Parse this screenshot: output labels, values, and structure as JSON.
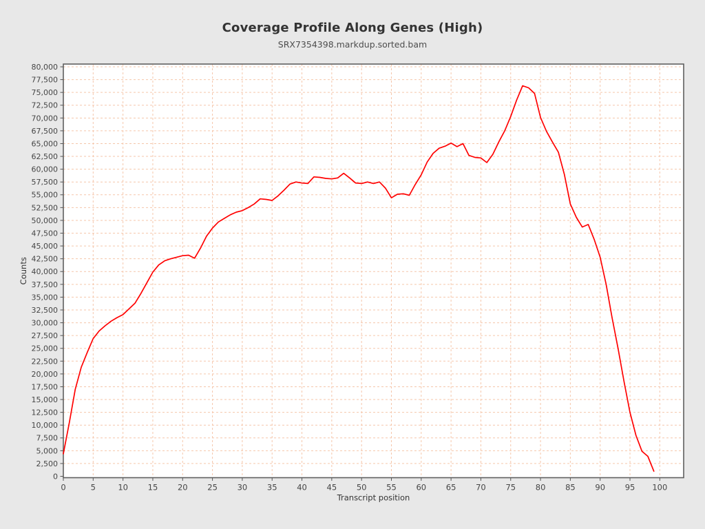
{
  "page": {
    "background": "#e8e8e8"
  },
  "chart_data": {
    "type": "line",
    "title": "Coverage Profile Along Genes (High)",
    "subtitle": "SRX7354398.markdup.sorted.bam",
    "xlabel": "Transcript position",
    "ylabel": "Counts",
    "xlim": [
      0,
      104
    ],
    "ylim": [
      0,
      80000
    ],
    "x_tick_step": 5,
    "x_tick_max": 100,
    "y_tick_step": 2500,
    "grid": true,
    "grid_color": "#f5c6aa",
    "plot_bg": "#ffffff",
    "border_color": "#5f5f5f",
    "tick_label_color": "#454545",
    "axis_title_color": "#333333",
    "legend": "none",
    "x": [
      0,
      1,
      2,
      3,
      4,
      5,
      6,
      7,
      8,
      9,
      10,
      11,
      12,
      13,
      14,
      15,
      16,
      17,
      18,
      19,
      20,
      21,
      22,
      23,
      24,
      25,
      26,
      27,
      28,
      29,
      30,
      31,
      32,
      33,
      34,
      35,
      36,
      37,
      38,
      39,
      40,
      41,
      42,
      43,
      44,
      45,
      46,
      47,
      48,
      49,
      50,
      51,
      52,
      53,
      54,
      55,
      56,
      57,
      58,
      59,
      60,
      61,
      62,
      63,
      64,
      65,
      66,
      67,
      68,
      69,
      70,
      71,
      72,
      73,
      74,
      75,
      76,
      77,
      78,
      79,
      80,
      81,
      82,
      83,
      84,
      85,
      86,
      87,
      88,
      89,
      90,
      91,
      92,
      93,
      94,
      95,
      96,
      97,
      98,
      99
    ],
    "series": [
      {
        "name": "SRX7354398.markdup.sorted.bam",
        "color": "#ff0000",
        "values": [
          4400,
          10500,
          17000,
          21300,
          24200,
          26900,
          28400,
          29400,
          30300,
          31000,
          31600,
          32700,
          33800,
          35700,
          37800,
          39900,
          41300,
          42100,
          42500,
          42800,
          43100,
          43200,
          42600,
          44600,
          46900,
          48500,
          49700,
          50400,
          51100,
          51600,
          51900,
          52500,
          53200,
          54200,
          54100,
          53900,
          54800,
          55900,
          57100,
          57500,
          57300,
          57200,
          58500,
          58400,
          58200,
          58100,
          58300,
          59200,
          58300,
          57300,
          57200,
          57500,
          57200,
          57500,
          56300,
          54400,
          55100,
          55200,
          54900,
          57000,
          58900,
          61400,
          63100,
          64100,
          64500,
          65100,
          64400,
          65000,
          62700,
          62300,
          62200,
          61300,
          62900,
          65300,
          67500,
          70300,
          73500,
          76300,
          75900,
          74800,
          70100,
          67400,
          65300,
          63300,
          59000,
          53200,
          50600,
          48700,
          49200,
          46300,
          42800,
          37500,
          31000,
          25000,
          18500,
          12500,
          8000,
          4900,
          3900,
          1000
        ]
      }
    ]
  }
}
